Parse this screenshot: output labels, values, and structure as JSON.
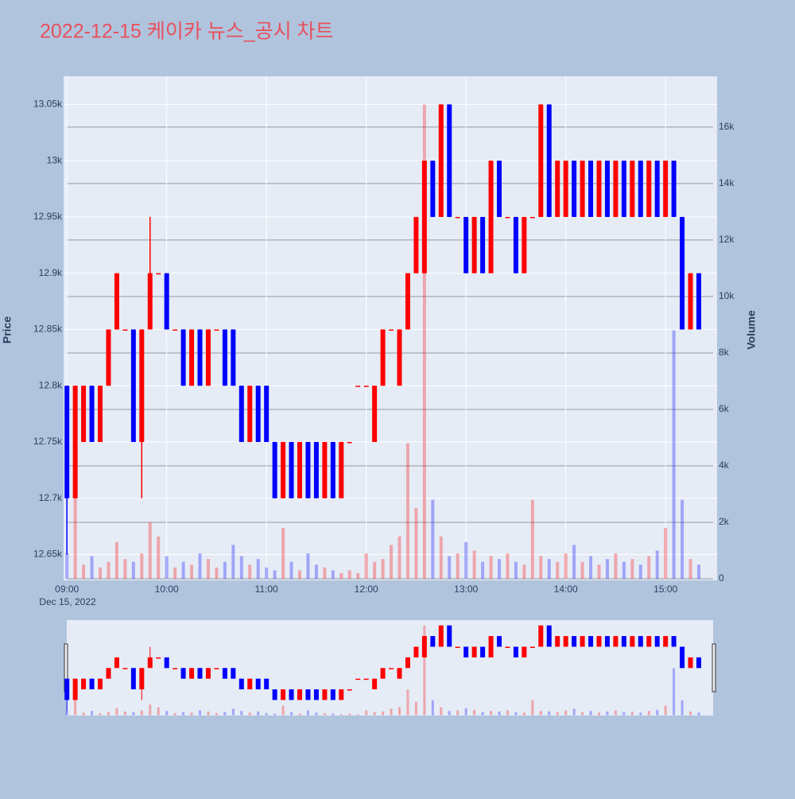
{
  "chart_data": {
    "type": "candlestick",
    "title": "2022-12-15 케이카 뉴스_공시 차트",
    "y_title": "Price",
    "y2_title": "Volume",
    "x_date_label": "Dec 15, 2022",
    "increasing_color": "#ff0000",
    "decreasing_color": "#0000ff",
    "x": [
      "09:00",
      "09:05",
      "09:10",
      "09:15",
      "09:20",
      "09:25",
      "09:30",
      "09:35",
      "09:40",
      "09:45",
      "09:50",
      "09:55",
      "10:00",
      "10:05",
      "10:10",
      "10:15",
      "10:20",
      "10:25",
      "10:30",
      "10:35",
      "10:40",
      "10:45",
      "10:50",
      "10:55",
      "11:00",
      "11:05",
      "11:10",
      "11:15",
      "11:20",
      "11:25",
      "11:30",
      "11:35",
      "11:40",
      "11:45",
      "11:50",
      "11:55",
      "12:00",
      "12:05",
      "12:10",
      "12:15",
      "12:20",
      "12:25",
      "12:30",
      "12:35",
      "12:40",
      "12:45",
      "12:50",
      "12:55",
      "13:00",
      "13:05",
      "13:10",
      "13:15",
      "13:20",
      "13:25",
      "13:30",
      "13:35",
      "13:40",
      "13:45",
      "13:50",
      "13:55",
      "14:00",
      "14:05",
      "14:10",
      "14:15",
      "14:20",
      "14:25",
      "14:30",
      "14:35",
      "14:40",
      "14:45",
      "14:50",
      "14:55",
      "15:00",
      "15:05",
      "15:10",
      "15:15",
      "15:20"
    ],
    "open": [
      12800,
      12700,
      12750,
      12800,
      12750,
      12800,
      12850,
      12850,
      12850,
      12750,
      12850,
      12900,
      12900,
      12850,
      12850,
      12800,
      12850,
      12800,
      12850,
      12850,
      12850,
      12800,
      12750,
      12800,
      12800,
      12750,
      12700,
      12750,
      12700,
      12750,
      12750,
      12700,
      12750,
      12700,
      12750,
      12800,
      12800,
      12750,
      12800,
      12850,
      12800,
      12850,
      12900,
      12900,
      13000,
      12950,
      13050,
      12950,
      12950,
      12900,
      12950,
      12900,
      13000,
      12950,
      12950,
      12900,
      12950,
      12950,
      13050,
      12950,
      12950,
      13000,
      12950,
      13000,
      12950,
      13000,
      12950,
      13000,
      12950,
      13000,
      12950,
      13000,
      12950,
      13000,
      12950,
      12850,
      12900
    ],
    "high": [
      12800,
      12800,
      12800,
      12800,
      12800,
      12850,
      12900,
      12850,
      12850,
      12850,
      12950,
      12900,
      12900,
      12850,
      12850,
      12850,
      12850,
      12850,
      12850,
      12850,
      12850,
      12800,
      12800,
      12800,
      12800,
      12750,
      12750,
      12750,
      12750,
      12750,
      12750,
      12750,
      12750,
      12750,
      12750,
      12800,
      12800,
      12800,
      12850,
      12850,
      12850,
      12900,
      12950,
      13000,
      13000,
      13050,
      13050,
      12950,
      12950,
      12950,
      12950,
      13000,
      13000,
      12950,
      12950,
      12950,
      12950,
      13050,
      13050,
      13000,
      13000,
      13000,
      13000,
      13000,
      13000,
      13000,
      13000,
      13000,
      13000,
      13000,
      13000,
      13000,
      13000,
      13000,
      12950,
      12900,
      12900
    ],
    "low": [
      12650,
      12700,
      12750,
      12750,
      12750,
      12800,
      12850,
      12850,
      12750,
      12700,
      12850,
      12900,
      12850,
      12850,
      12800,
      12800,
      12800,
      12800,
      12850,
      12800,
      12800,
      12750,
      12750,
      12750,
      12750,
      12700,
      12700,
      12700,
      12700,
      12700,
      12700,
      12700,
      12700,
      12700,
      12750,
      12800,
      12800,
      12750,
      12800,
      12850,
      12800,
      12850,
      12900,
      12900,
      12950,
      12950,
      12950,
      12950,
      12900,
      12900,
      12900,
      12900,
      12950,
      12950,
      12900,
      12900,
      12950,
      12950,
      12950,
      12950,
      12950,
      12950,
      12950,
      12950,
      12950,
      12950,
      12950,
      12950,
      12950,
      12950,
      12950,
      12950,
      12950,
      12950,
      12850,
      12850,
      12850
    ],
    "close": [
      12700,
      12800,
      12800,
      12750,
      12800,
      12850,
      12900,
      12850,
      12750,
      12850,
      12900,
      12900,
      12850,
      12850,
      12800,
      12850,
      12800,
      12850,
      12850,
      12800,
      12800,
      12750,
      12800,
      12750,
      12750,
      12700,
      12750,
      12700,
      12750,
      12700,
      12700,
      12750,
      12700,
      12750,
      12750,
      12800,
      12800,
      12800,
      12850,
      12850,
      12850,
      12900,
      12950,
      13000,
      12950,
      13050,
      12950,
      12950,
      12900,
      12950,
      12900,
      13000,
      12950,
      12950,
      12900,
      12950,
      12950,
      13050,
      12950,
      13000,
      13000,
      12950,
      13000,
      12950,
      13000,
      12950,
      13000,
      12950,
      13000,
      12950,
      13000,
      12950,
      13000,
      12950,
      12850,
      12900,
      12850
    ],
    "volume": [
      900,
      3000,
      500,
      800,
      400,
      600,
      1300,
      700,
      600,
      900,
      2000,
      1500,
      800,
      400,
      600,
      500,
      900,
      700,
      400,
      600,
      1200,
      800,
      500,
      700,
      400,
      300,
      1800,
      600,
      300,
      900,
      500,
      400,
      300,
      200,
      300,
      200,
      900,
      600,
      700,
      1200,
      1500,
      4800,
      2500,
      16800,
      2800,
      1500,
      800,
      900,
      1300,
      1000,
      600,
      800,
      700,
      900,
      600,
      500,
      2800,
      800,
      700,
      600,
      900,
      1200,
      600,
      800,
      500,
      700,
      900,
      600,
      700,
      500,
      800,
      1000,
      1800,
      8800,
      2800,
      700,
      500
    ],
    "xlim": [
      "08:58",
      "15:31"
    ],
    "xticks": [
      "09:00",
      "10:00",
      "11:00",
      "12:00",
      "13:00",
      "14:00",
      "15:00"
    ],
    "ylim": [
      12627,
      13075
    ],
    "yticks": [
      {
        "value": 12650,
        "label": "12.65k"
      },
      {
        "value": 12700,
        "label": "12.7k"
      },
      {
        "value": 12750,
        "label": "12.75k"
      },
      {
        "value": 12800,
        "label": "12.8k"
      },
      {
        "value": 12850,
        "label": "12.85k"
      },
      {
        "value": 12900,
        "label": "12.9k"
      },
      {
        "value": 12950,
        "label": "12.95k"
      },
      {
        "value": 13000,
        "label": "13k"
      },
      {
        "value": 13050,
        "label": "13.05k"
      }
    ],
    "y2lim": [
      -56,
      17800
    ],
    "y2ticks": [
      0,
      {
        "value": 2000,
        "label": "2k"
      },
      {
        "value": 4000,
        "label": "4k"
      },
      {
        "value": 6000,
        "label": "6k"
      },
      {
        "value": 8000,
        "label": "8k"
      },
      {
        "value": 10000,
        "label": "10k"
      },
      {
        "value": 12000,
        "label": "12k"
      },
      {
        "value": 14000,
        "label": "14k"
      },
      {
        "value": 16000,
        "label": "16k"
      }
    ],
    "grid": true
  }
}
